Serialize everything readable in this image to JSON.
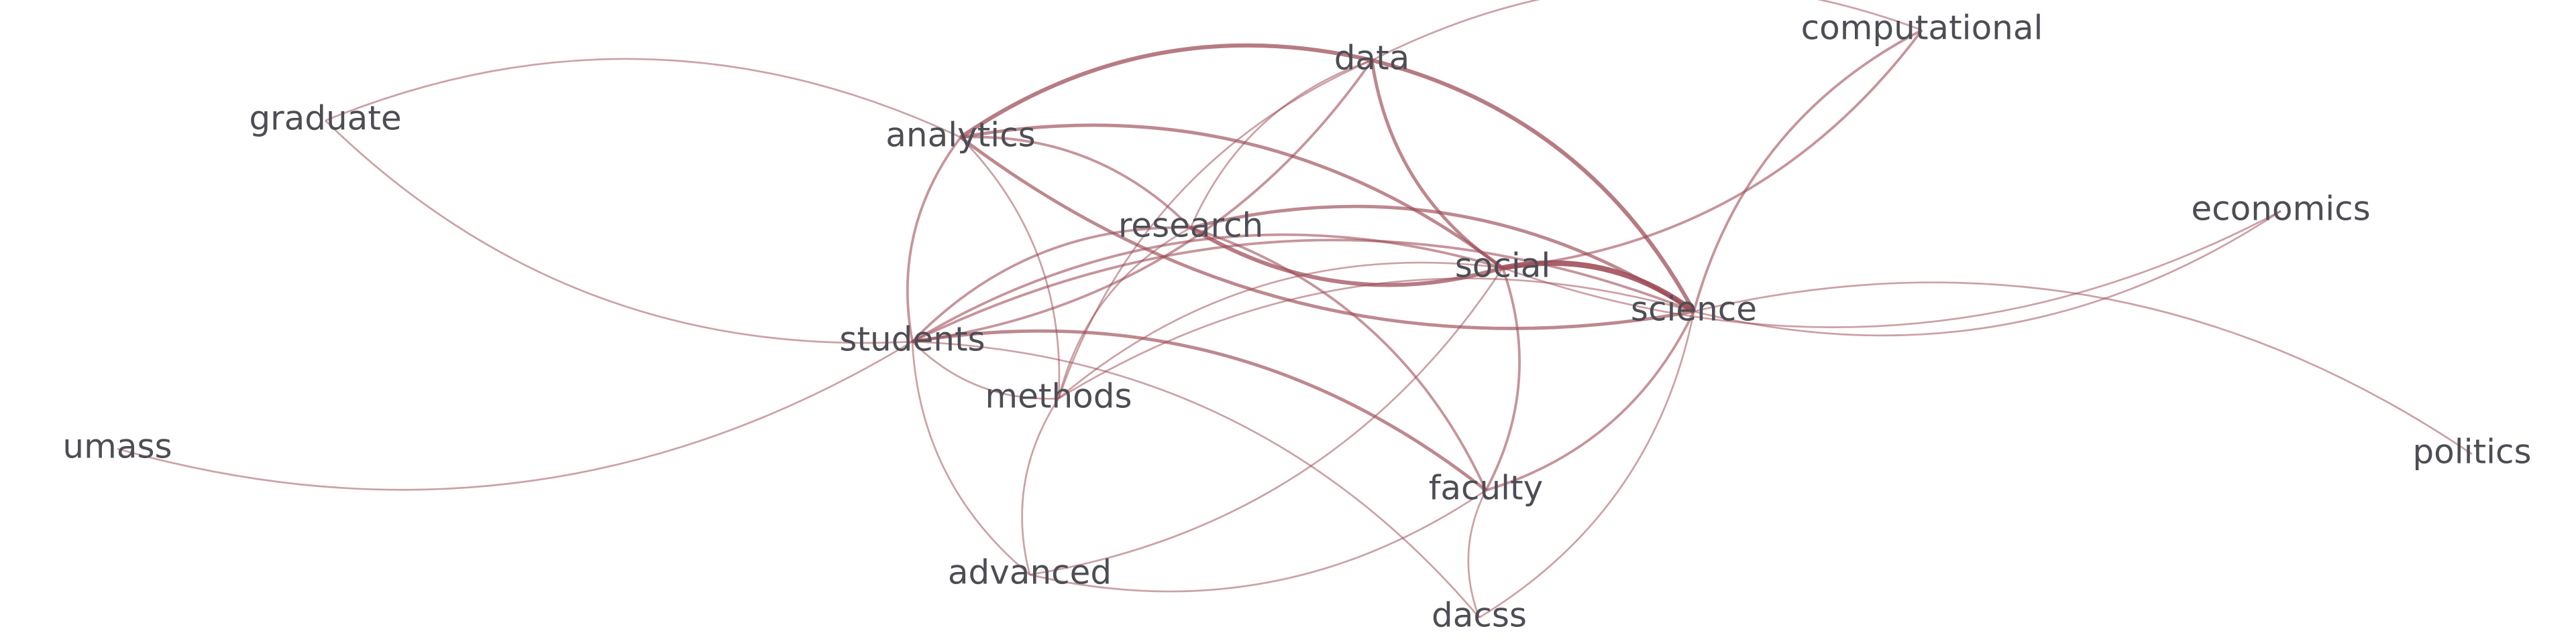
{
  "network": {
    "nodes": [
      {
        "id": "data",
        "label": "data"
      },
      {
        "id": "computational",
        "label": "computational"
      },
      {
        "id": "graduate",
        "label": "graduate"
      },
      {
        "id": "analytics",
        "label": "analytics"
      },
      {
        "id": "research",
        "label": "research"
      },
      {
        "id": "economics",
        "label": "economics"
      },
      {
        "id": "social",
        "label": "social"
      },
      {
        "id": "science",
        "label": "science"
      },
      {
        "id": "students",
        "label": "students"
      },
      {
        "id": "methods",
        "label": "methods"
      },
      {
        "id": "umass",
        "label": "umass"
      },
      {
        "id": "politics",
        "label": "politics"
      },
      {
        "id": "faculty",
        "label": "faculty"
      },
      {
        "id": "advanced",
        "label": "advanced"
      },
      {
        "id": "dacss",
        "label": "dacss"
      }
    ],
    "edges": [
      {
        "source": "data",
        "target": "analytics",
        "weight": 4
      },
      {
        "source": "data",
        "target": "science",
        "weight": 4
      },
      {
        "source": "data",
        "target": "social",
        "weight": 3
      },
      {
        "source": "data",
        "target": "computational",
        "weight": 1
      },
      {
        "source": "data",
        "target": "research",
        "weight": 1
      },
      {
        "source": "data",
        "target": "students",
        "weight": 2
      },
      {
        "source": "data",
        "target": "methods",
        "weight": 1
      },
      {
        "source": "computational",
        "target": "social",
        "weight": 2
      },
      {
        "source": "computational",
        "target": "science",
        "weight": 2
      },
      {
        "source": "graduate",
        "target": "analytics",
        "weight": 1
      },
      {
        "source": "graduate",
        "target": "students",
        "weight": 1
      },
      {
        "source": "analytics",
        "target": "social",
        "weight": 3
      },
      {
        "source": "analytics",
        "target": "science",
        "weight": 3
      },
      {
        "source": "analytics",
        "target": "research",
        "weight": 2
      },
      {
        "source": "analytics",
        "target": "students",
        "weight": 2
      },
      {
        "source": "analytics",
        "target": "methods",
        "weight": 1
      },
      {
        "source": "research",
        "target": "social",
        "weight": 4
      },
      {
        "source": "research",
        "target": "science",
        "weight": 3
      },
      {
        "source": "research",
        "target": "students",
        "weight": 2
      },
      {
        "source": "research",
        "target": "faculty",
        "weight": 2
      },
      {
        "source": "research",
        "target": "methods",
        "weight": 1
      },
      {
        "source": "social",
        "target": "science",
        "weight": 6
      },
      {
        "source": "social",
        "target": "students",
        "weight": 2
      },
      {
        "source": "social",
        "target": "faculty",
        "weight": 2
      },
      {
        "source": "social",
        "target": "methods",
        "weight": 1
      },
      {
        "source": "social",
        "target": "advanced",
        "weight": 1
      },
      {
        "source": "science",
        "target": "students",
        "weight": 2
      },
      {
        "source": "science",
        "target": "faculty",
        "weight": 2
      },
      {
        "source": "science",
        "target": "economics",
        "weight": 1
      },
      {
        "source": "science",
        "target": "politics",
        "weight": 1
      },
      {
        "source": "science",
        "target": "methods",
        "weight": 1
      },
      {
        "source": "science",
        "target": "dacss",
        "weight": 1
      },
      {
        "source": "social",
        "target": "economics",
        "weight": 1
      },
      {
        "source": "students",
        "target": "faculty",
        "weight": 3
      },
      {
        "source": "students",
        "target": "methods",
        "weight": 1
      },
      {
        "source": "students",
        "target": "umass",
        "weight": 1
      },
      {
        "source": "students",
        "target": "advanced",
        "weight": 1
      },
      {
        "source": "students",
        "target": "dacss",
        "weight": 1
      },
      {
        "source": "methods",
        "target": "advanced",
        "weight": 1
      },
      {
        "source": "faculty",
        "target": "advanced",
        "weight": 1
      },
      {
        "source": "faculty",
        "target": "dacss",
        "weight": 1
      }
    ]
  },
  "colors": {
    "edge": "#9c4a55",
    "label": "#4d4d55",
    "background": "#ffffff"
  }
}
